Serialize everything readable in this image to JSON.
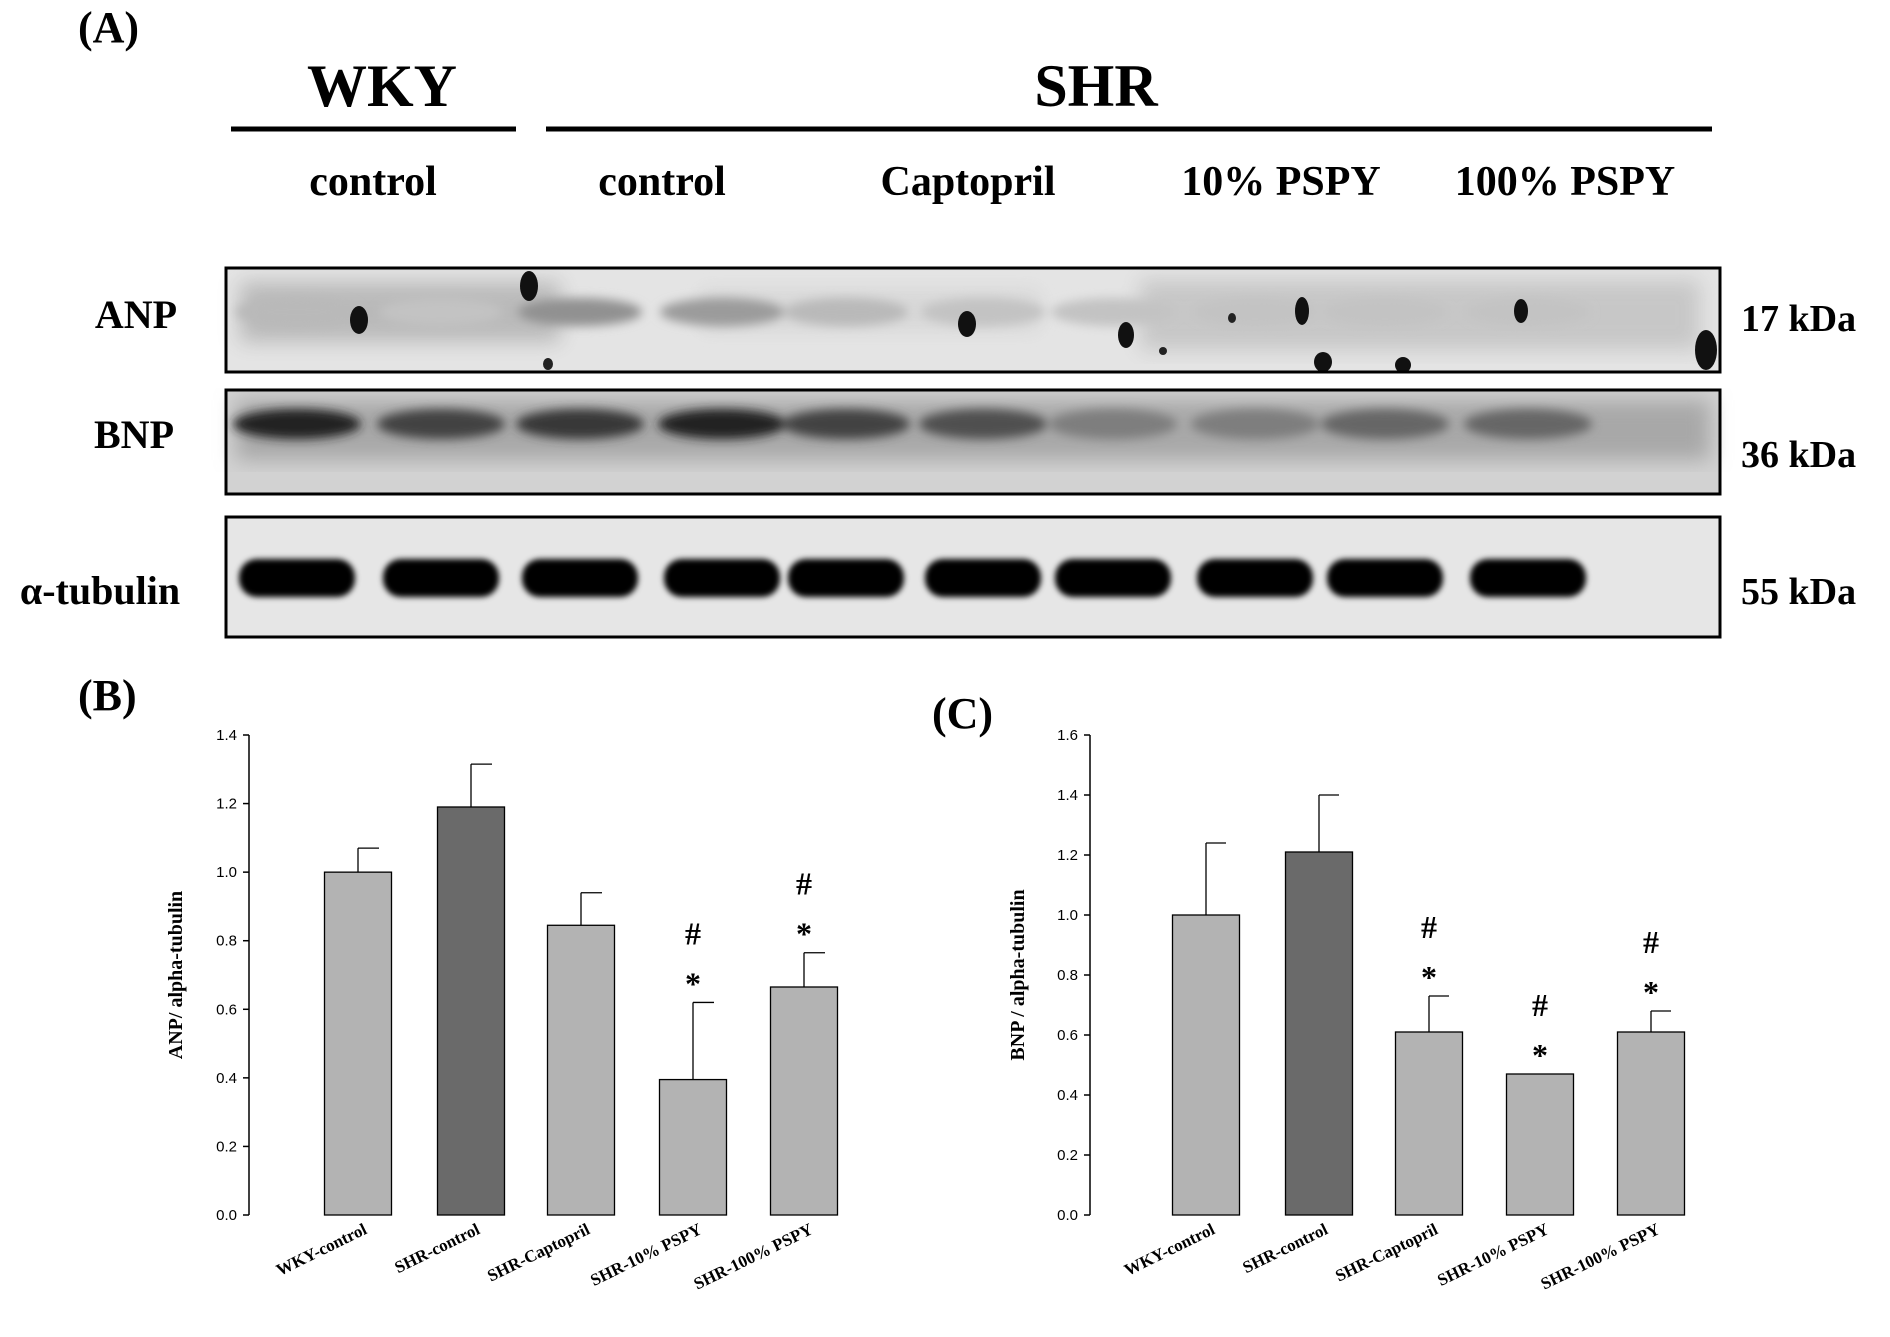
{
  "panel_a": {
    "label": "(A)",
    "header_left": "WKY",
    "header_right": "SHR",
    "groups": [
      "control",
      "control",
      "Captopril",
      "10% PSPY",
      "100% PSPY"
    ],
    "rows": [
      {
        "label": "ANP",
        "kda": "17 kDa",
        "style": "faint"
      },
      {
        "label": "BNP",
        "kda": "36 kDa",
        "style": "medium"
      },
      {
        "label": "α-tubulin",
        "kda": "55 kDa",
        "style": "strong"
      }
    ],
    "lane_count": 10
  },
  "chart_data": [
    {
      "panel_label": "(B)",
      "type": "bar",
      "title": "",
      "xlabel": "",
      "ylabel": "ANP/ alpha-tubulin",
      "ylim": [
        0,
        1.4
      ],
      "yticks": [
        0.0,
        0.2,
        0.4,
        0.6,
        0.8,
        1.0,
        1.2,
        1.4
      ],
      "yticklabels": [
        "0.0",
        "0.2",
        "0.4",
        "0.6",
        "0.8",
        "1.0",
        "1.2",
        "1.4"
      ],
      "categories": [
        "WKY-control",
        "SHR-control",
        "SHR-Captopril",
        "SHR-10% PSPY",
        "SHR-100% PSPY"
      ],
      "values": [
        1.0,
        1.19,
        0.845,
        0.395,
        0.665
      ],
      "errors": [
        0.07,
        0.125,
        0.095,
        0.225,
        0.1
      ],
      "annotations": [
        [],
        [],
        [],
        [
          "#",
          "*"
        ],
        [
          "#",
          "*"
        ]
      ],
      "colors": [
        "#b3b3b3",
        "#6a6a6a",
        "#b3b3b3",
        "#b3b3b3",
        "#b3b3b3"
      ],
      "grid": false,
      "legend": "none"
    },
    {
      "panel_label": "(C)",
      "type": "bar",
      "title": "",
      "xlabel": "",
      "ylabel": "BNP / alpha-tubulin",
      "ylim": [
        0,
        1.6
      ],
      "yticks": [
        0.0,
        0.2,
        0.4,
        0.6,
        0.8,
        1.0,
        1.2,
        1.4,
        1.6
      ],
      "yticklabels": [
        "0.0",
        "0.2",
        "0.4",
        "0.6",
        "0.8",
        "1.0",
        "1.2",
        "1.4",
        "1.6"
      ],
      "categories": [
        "WKY-control",
        "SHR-control",
        "SHR-Captopril",
        "SHR-10% PSPY",
        "SHR-100% PSPY"
      ],
      "values": [
        1.0,
        1.21,
        0.61,
        0.47,
        0.61
      ],
      "errors": [
        0.24,
        0.19,
        0.12,
        0.0,
        0.07
      ],
      "annotations": [
        [],
        [],
        [
          "#",
          "*"
        ],
        [
          "#",
          "*"
        ],
        [
          "#",
          "*"
        ]
      ],
      "colors": [
        "#b3b3b3",
        "#6a6a6a",
        "#b3b3b3",
        "#b3b3b3",
        "#b3b3b3"
      ],
      "grid": false,
      "legend": "none"
    }
  ]
}
